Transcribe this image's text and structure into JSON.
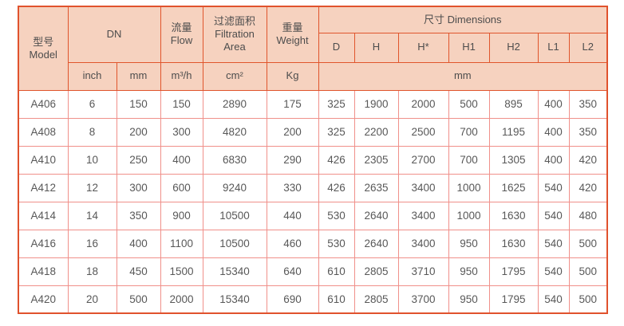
{
  "page": {
    "background": "#ffffff"
  },
  "table": {
    "colors": {
      "header_bg": "#f6d2bf",
      "header_border": "#e0552c",
      "outer_border": "#e0522d",
      "body_grid": "#f0908a",
      "header_text": "#4d4d4d",
      "body_text": "#585858"
    },
    "header": {
      "model_zh": "型号",
      "model_en": "Model",
      "dn": "DN",
      "flow_zh": "流量",
      "flow_en": "Flow",
      "filtration_zh": "过滤面积",
      "filtration_en1": "Filtration",
      "filtration_en2": "Area",
      "weight_zh": "重量",
      "weight_en": "Weight",
      "dimensions": "尺寸 Dimensions",
      "dim_cols": [
        "D",
        "H",
        "H*",
        "H1",
        "H2",
        "L1",
        "L2"
      ],
      "unit_inch": "inch",
      "unit_mm": "mm",
      "unit_flow": "m³/h",
      "unit_area": "cm²",
      "unit_weight": "Kg",
      "unit_dim": "mm"
    },
    "rows": [
      {
        "model": "A406",
        "values": [
          "6",
          "150",
          "150",
          "2890",
          "175",
          "325",
          "1900",
          "2000",
          "500",
          "895",
          "400",
          "350"
        ]
      },
      {
        "model": "A408",
        "values": [
          "8",
          "200",
          "300",
          "4820",
          "200",
          "325",
          "2200",
          "2500",
          "700",
          "1195",
          "400",
          "350"
        ]
      },
      {
        "model": "A410",
        "values": [
          "10",
          "250",
          "400",
          "6830",
          "290",
          "426",
          "2305",
          "2700",
          "700",
          "1305",
          "400",
          "420"
        ]
      },
      {
        "model": "A412",
        "values": [
          "12",
          "300",
          "600",
          "9240",
          "330",
          "426",
          "2635",
          "3400",
          "1000",
          "1625",
          "540",
          "420"
        ]
      },
      {
        "model": "A414",
        "values": [
          "14",
          "350",
          "900",
          "10500",
          "440",
          "530",
          "2640",
          "3400",
          "1000",
          "1630",
          "540",
          "480"
        ]
      },
      {
        "model": "A416",
        "values": [
          "16",
          "400",
          "1100",
          "10500",
          "460",
          "530",
          "2640",
          "3400",
          "950",
          "1630",
          "540",
          "500"
        ]
      },
      {
        "model": "A418",
        "values": [
          "18",
          "450",
          "1500",
          "15340",
          "640",
          "610",
          "2805",
          "3710",
          "950",
          "1795",
          "540",
          "500"
        ]
      },
      {
        "model": "A420",
        "values": [
          "20",
          "500",
          "2000",
          "15340",
          "690",
          "610",
          "2805",
          "3700",
          "950",
          "1795",
          "540",
          "500"
        ]
      }
    ]
  }
}
